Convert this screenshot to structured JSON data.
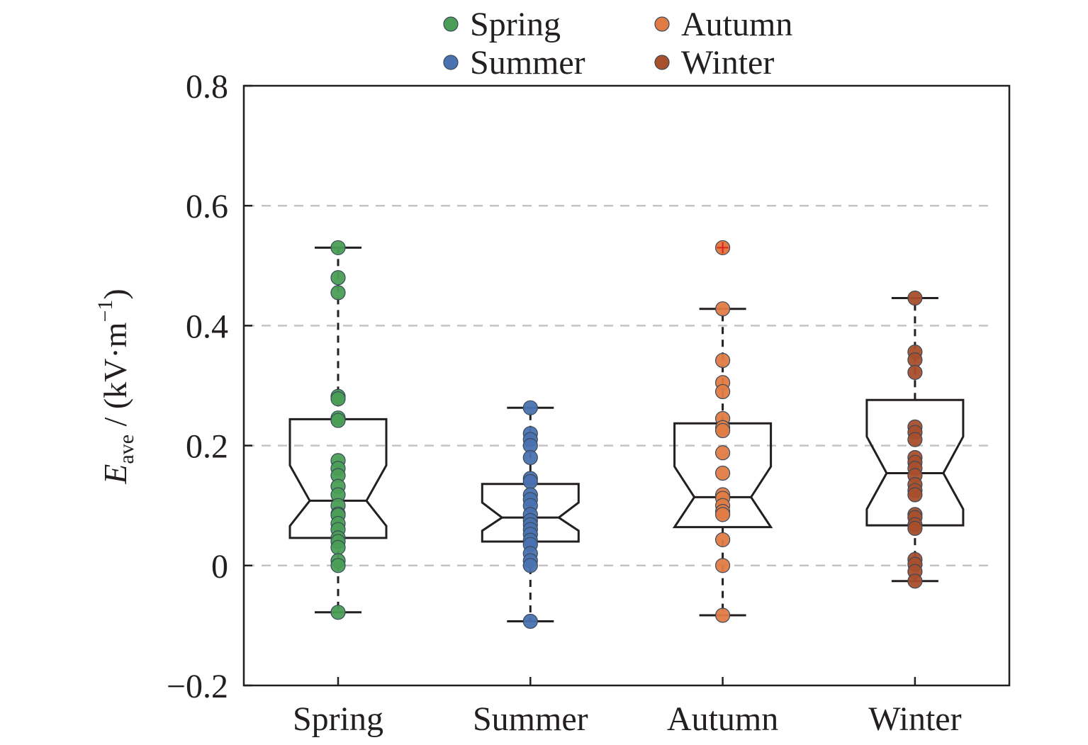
{
  "chart_data": {
    "type": "boxplot",
    "title": "",
    "ylabel": {
      "symbol": "E",
      "subscript": "ave",
      "unit_prefix": " / (kV·m",
      "unit_exponent": "−1",
      "unit_suffix": ")"
    },
    "xlabel": "",
    "ylim": [
      -0.2,
      0.8
    ],
    "y_ticks": [
      -0.2,
      0,
      0.2,
      0.4,
      0.6,
      0.8
    ],
    "y_tick_labels": [
      "−0.2",
      "0",
      "0.2",
      "0.4",
      "0.6",
      "0.8"
    ],
    "grid_lines": [
      0,
      0.2,
      0.4,
      0.6
    ],
    "grid": "dashed horizontal",
    "notched": true,
    "legend": {
      "placement": "top-center",
      "entries": [
        {
          "name": "Spring",
          "color": "#4a9e55"
        },
        {
          "name": "Summer",
          "color": "#4a72b0"
        },
        {
          "name": "Autumn",
          "color": "#e07b45"
        },
        {
          "name": "Winter",
          "color": "#a84f2c"
        }
      ]
    },
    "categories": [
      "Spring",
      "Summer",
      "Autumn",
      "Winter"
    ],
    "series": [
      {
        "name": "Spring",
        "color": "#4a9e55",
        "box": {
          "whisker_low": -0.078,
          "q1": 0.046,
          "median": 0.108,
          "q3": 0.244,
          "whisker_high": 0.53,
          "notch_low": 0.066,
          "notch_high": 0.167
        },
        "points": [
          0.53,
          0.48,
          0.455,
          0.282,
          0.278,
          0.246,
          0.242,
          0.175,
          0.162,
          0.15,
          0.132,
          0.118,
          0.1,
          0.086,
          0.084,
          0.07,
          0.06,
          0.046,
          0.04,
          0.03,
          0.008,
          0.0,
          -0.078
        ],
        "outliers": []
      },
      {
        "name": "Summer",
        "color": "#4a72b0",
        "box": {
          "whisker_low": -0.093,
          "q1": 0.04,
          "median": 0.08,
          "q3": 0.136,
          "whisker_high": 0.263,
          "notch_low": 0.058,
          "notch_high": 0.105
        },
        "points": [
          0.263,
          0.22,
          0.21,
          0.2,
          0.18,
          0.145,
          0.14,
          0.118,
          0.11,
          0.1,
          0.085,
          0.075,
          0.068,
          0.06,
          0.052,
          0.042,
          0.035,
          0.02,
          0.008,
          0.0,
          -0.093
        ],
        "outliers": []
      },
      {
        "name": "Autumn",
        "color": "#e07b45",
        "box": {
          "whisker_low": -0.083,
          "q1": 0.064,
          "median": 0.114,
          "q3": 0.237,
          "whisker_high": 0.428,
          "notch_low": 0.064,
          "notch_high": 0.165
        },
        "points": [
          0.428,
          0.342,
          0.305,
          0.29,
          0.245,
          0.23,
          0.225,
          0.188,
          0.154,
          0.118,
          0.112,
          0.1,
          0.09,
          0.085,
          0.043,
          0.0,
          -0.083
        ],
        "outliers": [
          0.53
        ]
      },
      {
        "name": "Winter",
        "color": "#a84f2c",
        "box": {
          "whisker_low": -0.026,
          "q1": 0.067,
          "median": 0.154,
          "q3": 0.276,
          "whisker_high": 0.446,
          "notch_low": 0.094,
          "notch_high": 0.215
        },
        "points": [
          0.446,
          0.356,
          0.343,
          0.322,
          0.231,
          0.222,
          0.21,
          0.18,
          0.172,
          0.162,
          0.15,
          0.135,
          0.125,
          0.118,
          0.085,
          0.08,
          0.068,
          0.062,
          0.01,
          0.002,
          -0.01,
          -0.026
        ],
        "outliers": []
      }
    ]
  }
}
